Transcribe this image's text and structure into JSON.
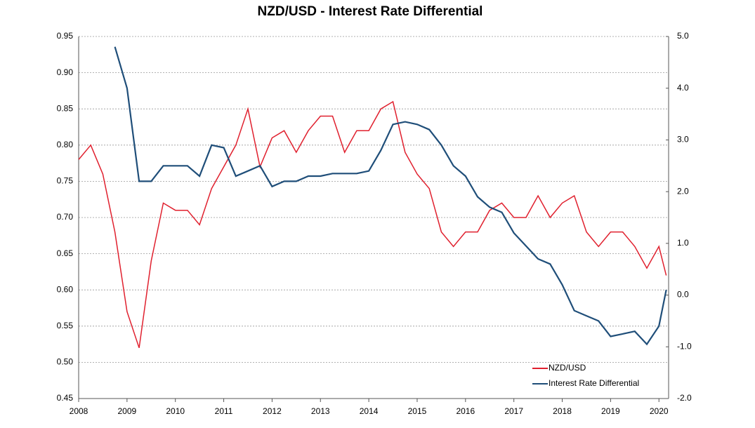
{
  "chart_data": {
    "type": "line",
    "title": "NZD/USD - Interest Rate Differential",
    "x": [
      2008.0,
      2008.25,
      2008.5,
      2008.75,
      2009.0,
      2009.25,
      2009.5,
      2009.75,
      2010.0,
      2010.25,
      2010.5,
      2010.75,
      2011.0,
      2011.25,
      2011.5,
      2011.75,
      2012.0,
      2012.25,
      2012.5,
      2012.75,
      2013.0,
      2013.25,
      2013.5,
      2013.75,
      2014.0,
      2014.25,
      2014.5,
      2014.75,
      2015.0,
      2015.25,
      2015.5,
      2015.75,
      2016.0,
      2016.25,
      2016.5,
      2016.75,
      2017.0,
      2017.25,
      2017.5,
      2017.75,
      2018.0,
      2018.25,
      2018.5,
      2018.75,
      2019.0,
      2019.25,
      2019.5,
      2019.75,
      2020.0,
      2020.15
    ],
    "series": [
      {
        "name": "NZD/USD",
        "color": "#e0202e",
        "values": [
          0.78,
          0.8,
          0.76,
          0.68,
          0.57,
          0.52,
          0.64,
          0.72,
          0.71,
          0.71,
          0.69,
          0.74,
          0.77,
          0.8,
          0.85,
          0.77,
          0.81,
          0.82,
          0.79,
          0.82,
          0.84,
          0.84,
          0.79,
          0.82,
          0.82,
          0.85,
          0.86,
          0.79,
          0.76,
          0.74,
          0.68,
          0.66,
          0.68,
          0.68,
          0.71,
          0.72,
          0.7,
          0.7,
          0.73,
          0.7,
          0.72,
          0.73,
          0.68,
          0.66,
          0.68,
          0.68,
          0.66,
          0.63,
          0.66,
          0.62
        ]
      },
      {
        "name": "Interest Rate Differential",
        "color": "#1f4e79",
        "axis": "y2",
        "values": [
          null,
          null,
          null,
          4.8,
          4.0,
          2.2,
          2.2,
          2.5,
          2.5,
          2.5,
          2.3,
          2.9,
          2.85,
          2.3,
          2.4,
          2.5,
          2.1,
          2.2,
          2.2,
          2.3,
          2.3,
          2.35,
          2.35,
          2.35,
          2.4,
          2.8,
          3.3,
          3.35,
          3.3,
          3.2,
          2.9,
          2.5,
          2.3,
          1.9,
          1.7,
          1.6,
          1.2,
          0.95,
          0.7,
          0.6,
          0.2,
          -0.3,
          -0.4,
          -0.5,
          -0.8,
          -0.75,
          -0.7,
          -0.95,
          -0.6,
          0.1
        ]
      }
    ],
    "xlim": [
      2008,
      2020.2
    ],
    "xticks": [
      2008,
      2009,
      2010,
      2011,
      2012,
      2013,
      2014,
      2015,
      2016,
      2017,
      2018,
      2019,
      2020
    ],
    "ylim": [
      0.45,
      0.95
    ],
    "yticks": [
      0.45,
      {
        "value": 0.5,
        "label": "0.50"
      },
      0.55,
      {
        "value": 0.6,
        "label": "0.60"
      },
      0.65,
      {
        "value": 0.7,
        "label": "0.70"
      },
      0.75,
      {
        "value": 0.8,
        "label": "0.80"
      },
      0.85,
      {
        "value": 0.9,
        "label": "0.90"
      },
      0.95
    ],
    "y2lim": [
      -2,
      5
    ],
    "y2ticks": [
      {
        "value": -2,
        "label": "-2.0"
      },
      {
        "value": -1,
        "label": "-1.0"
      },
      {
        "value": 0,
        "label": "0.0"
      },
      {
        "value": 1,
        "label": "1.0"
      },
      {
        "value": 2,
        "label": "2.0"
      },
      {
        "value": 3,
        "label": "3.0"
      },
      {
        "value": 4,
        "label": "4.0"
      },
      {
        "value": 5,
        "label": "5.0"
      }
    ],
    "grid": true,
    "legend": "lower right"
  }
}
